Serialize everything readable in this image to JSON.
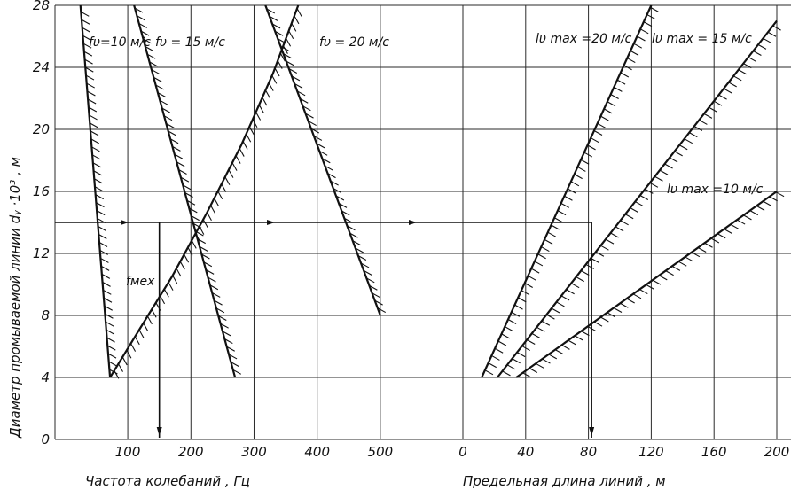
{
  "chart_data": [
    {
      "type": "line",
      "panel": "frequency",
      "xlabel": "Частота колебаний , Гц",
      "ylabel": "Диаметр промываемой линии dᵧ ·10³ , м",
      "x_ticks": [
        "100",
        "200",
        "300",
        "400",
        "500"
      ],
      "y_ticks": [
        "0",
        "4",
        "8",
        "12",
        "16",
        "20",
        "24",
        "28"
      ],
      "xlim": [
        10,
        500
      ],
      "ylim": [
        0,
        28
      ],
      "grid": true,
      "series": [
        {
          "name": "fυ=10 м/с",
          "x": [
            72,
            25
          ],
          "y": [
            4,
            28
          ],
          "hatch": "right"
        },
        {
          "name": "fυ = 15 м/с",
          "x": [
            270,
            110
          ],
          "y": [
            4,
            28
          ],
          "hatch": "right"
        },
        {
          "name": "fυ = 20 м/с",
          "x": [
            500,
            318
          ],
          "y": [
            8,
            28
          ],
          "hatch": "right"
        },
        {
          "name": "fмех",
          "x": [
            72,
            120,
            170,
            225,
            280,
            330,
            370
          ],
          "y": [
            4,
            7.2,
            10.5,
            14.6,
            19.0,
            23.6,
            28
          ],
          "hatch": "below"
        }
      ]
    },
    {
      "type": "line",
      "panel": "length",
      "xlabel": "Предельная длина линий , м",
      "x_ticks": [
        "0",
        "40",
        "80",
        "120",
        "160",
        "200"
      ],
      "xlim": [
        0,
        200
      ],
      "ylim": [
        0,
        28
      ],
      "grid": true,
      "series": [
        {
          "name": "lυ max =20 м/с",
          "x": [
            12,
            120
          ],
          "y": [
            4,
            28
          ],
          "hatch": "right"
        },
        {
          "name": "lυ max = 15 м/с",
          "x": [
            22,
            200
          ],
          "y": [
            4,
            27
          ],
          "hatch": "right"
        },
        {
          "name": "lυ max =10 м/с",
          "x": [
            34,
            200
          ],
          "y": [
            4,
            16
          ],
          "hatch": "right"
        }
      ]
    }
  ],
  "construction": {
    "d_value": 14,
    "f_value": 150,
    "l_value": 82
  }
}
